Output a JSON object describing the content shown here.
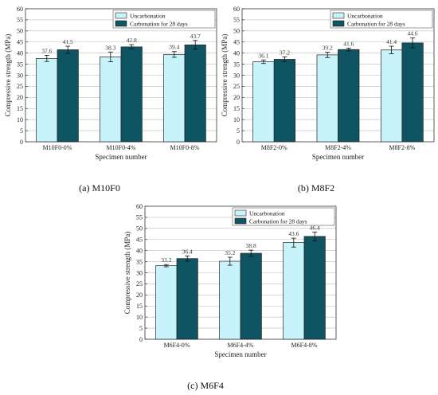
{
  "colors": {
    "uncarbonation": "#c9f3fb",
    "carbonation": "#0e5462",
    "grid": "#bcbcbc"
  },
  "chart_data": [
    {
      "type": "bar",
      "caption_prefix": "(a) ",
      "caption_name": "M10F0",
      "ylabel": "Compressive strength (MPa)",
      "xlabel": "Specimen number",
      "ylim": [
        0,
        60
      ],
      "yticks": [
        0,
        5,
        10,
        15,
        20,
        25,
        30,
        35,
        40,
        45,
        50,
        55,
        60
      ],
      "categories": [
        "M10F0-0%",
        "M10F0-4%",
        "M10F0-8%"
      ],
      "series": [
        {
          "name": "Uncarbonation",
          "values": [
            37.6,
            38.3,
            39.4
          ],
          "labels": [
            "37.6",
            "38.3",
            "39.4"
          ],
          "errors": [
            1.4,
            2.2,
            1.3
          ]
        },
        {
          "name": "Carbonation for 28 days",
          "values": [
            41.5,
            42.8,
            43.7
          ],
          "labels": [
            "41.5",
            "42.8",
            "43.7"
          ],
          "errors": [
            1.6,
            1.0,
            2.0
          ]
        }
      ],
      "legend": "top-right",
      "grid": true
    },
    {
      "type": "bar",
      "caption_prefix": "(b) ",
      "caption_name": "M8F2",
      "ylabel": "Compressive strength (MPa)",
      "xlabel": "Specimen number",
      "ylim": [
        0,
        60
      ],
      "yticks": [
        0,
        5,
        10,
        15,
        20,
        25,
        30,
        35,
        40,
        45,
        50,
        55,
        60
      ],
      "categories": [
        "M8F2-0%",
        "M8F2-4%",
        "M8F2-8%"
      ],
      "series": [
        {
          "name": "Uncarbonation",
          "values": [
            36.1,
            39.2,
            41.4
          ],
          "labels": [
            "36.1",
            "39.2",
            "41.4"
          ],
          "errors": [
            0.8,
            1.2,
            1.7
          ]
        },
        {
          "name": "Carbonation for 28 days",
          "values": [
            37.2,
            41.6,
            44.6
          ],
          "labels": [
            "37.2",
            "41.6",
            "44.6"
          ],
          "errors": [
            1.1,
            0.6,
            2.2
          ]
        }
      ],
      "legend": "top-right",
      "grid": true
    },
    {
      "type": "bar",
      "caption_prefix": "(c) ",
      "caption_name": "M6F4",
      "ylabel": "Compressive strength (MPa)",
      "xlabel": "Specimen number",
      "ylim": [
        0,
        60
      ],
      "yticks": [
        0,
        5,
        10,
        15,
        20,
        25,
        30,
        35,
        40,
        45,
        50,
        55,
        60
      ],
      "categories": [
        "M6F4-0%",
        "M6F4-4%",
        "M6F4-8%"
      ],
      "series": [
        {
          "name": "Uncarbonation",
          "values": [
            33.2,
            35.2,
            43.6
          ],
          "labels": [
            "33.2",
            "35.2",
            "43.6"
          ],
          "errors": [
            0.5,
            1.8,
            2.0
          ]
        },
        {
          "name": "Carbonation for 28 days",
          "values": [
            36.4,
            38.8,
            46.4
          ],
          "labels": [
            "36.4",
            "38.8",
            "46.4"
          ],
          "errors": [
            1.2,
            1.4,
            2.0
          ]
        }
      ],
      "legend": "top-right",
      "grid": true
    }
  ]
}
